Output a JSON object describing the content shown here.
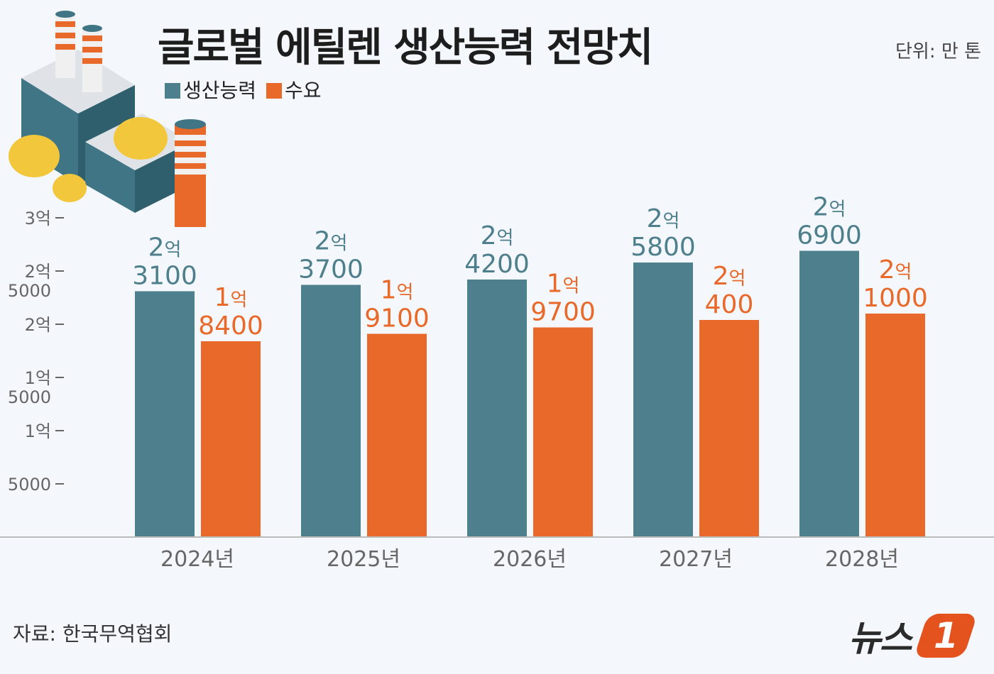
{
  "title": "글로벌 에틸렌 생산능력 전망치",
  "unit": "단위: 만 톤",
  "source": "자료: 한국무역협회",
  "logo": {
    "text": "뉴스",
    "badge": "1"
  },
  "colors": {
    "capacity": "#4e7f8c",
    "demand": "#e8692a",
    "background": "#f4f7fb"
  },
  "chart_data": {
    "type": "bar",
    "title": "글로벌 에틸렌 생산능력 전망치",
    "unit": "만 톤",
    "categories": [
      "2024년",
      "2025년",
      "2026년",
      "2027년",
      "2028년"
    ],
    "series": [
      {
        "name": "생산능력",
        "values": [
          23100,
          23700,
          24200,
          25800,
          26900
        ],
        "labels": [
          [
            "2억",
            "3100"
          ],
          [
            "2억",
            "3700"
          ],
          [
            "2억",
            "4200"
          ],
          [
            "2억",
            "5800"
          ],
          [
            "2억",
            "6900"
          ]
        ]
      },
      {
        "name": "수요",
        "values": [
          18400,
          19100,
          19700,
          20400,
          21000
        ],
        "labels": [
          [
            "1억",
            "8400"
          ],
          [
            "1억",
            "9100"
          ],
          [
            "1억",
            "9700"
          ],
          [
            "2억",
            "400"
          ],
          [
            "2억",
            "1000"
          ]
        ]
      }
    ],
    "yticks": [
      {
        "value": 30000,
        "label": [
          "3억"
        ]
      },
      {
        "value": 25000,
        "label": [
          "2억",
          "5000"
        ]
      },
      {
        "value": 20000,
        "label": [
          "2억"
        ]
      },
      {
        "value": 15000,
        "label": [
          "1억",
          "5000"
        ]
      },
      {
        "value": 10000,
        "label": [
          "1억"
        ]
      },
      {
        "value": 5000,
        "label": [
          "5000"
        ]
      }
    ],
    "ylim": [
      0,
      30000
    ],
    "legend": "top-left"
  }
}
